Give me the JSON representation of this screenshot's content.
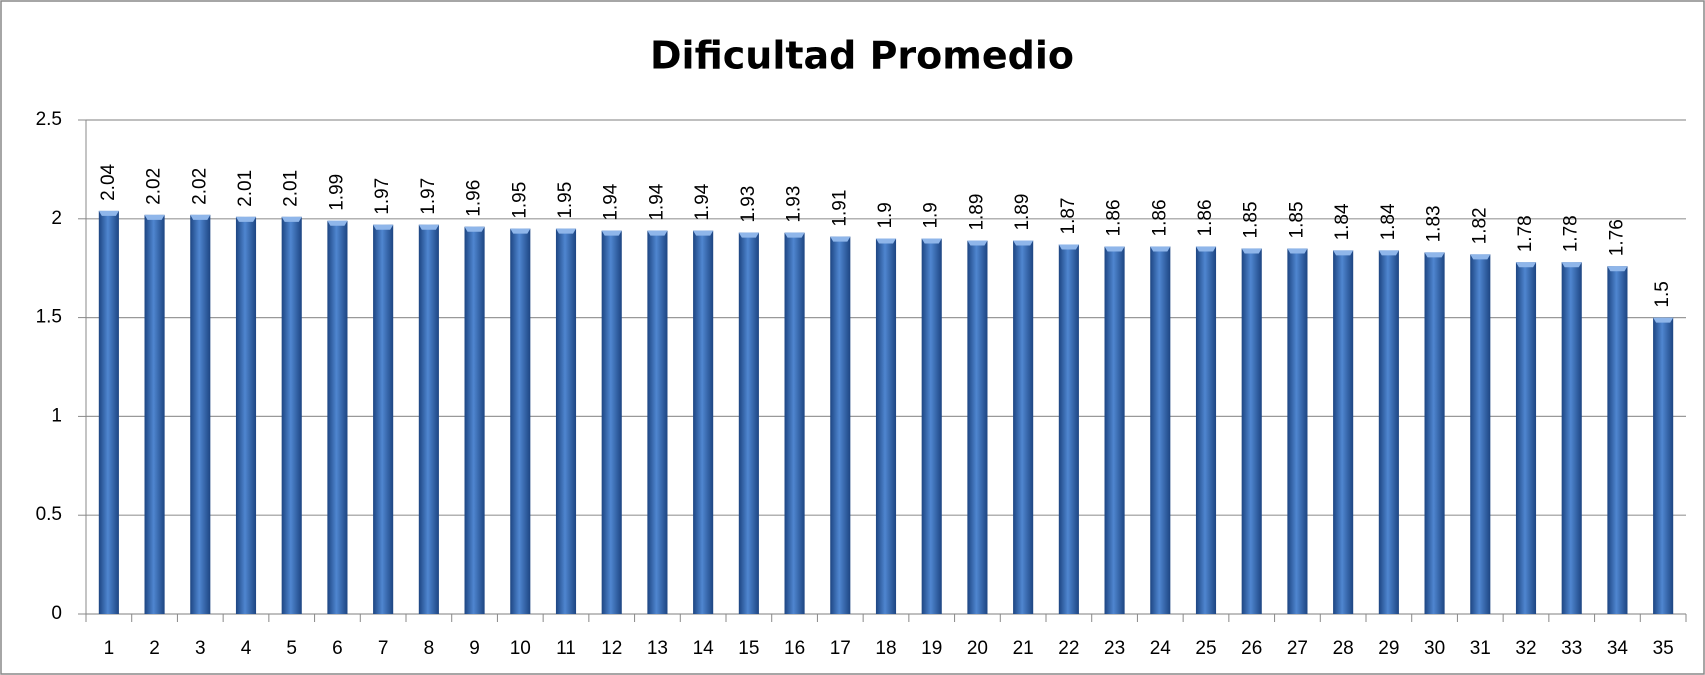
{
  "chart_data": {
    "type": "bar",
    "title": "Dificultad Promedio",
    "categories": [
      "1",
      "2",
      "3",
      "4",
      "5",
      "6",
      "7",
      "8",
      "9",
      "10",
      "11",
      "12",
      "13",
      "14",
      "15",
      "16",
      "17",
      "18",
      "19",
      "20",
      "21",
      "22",
      "23",
      "24",
      "25",
      "26",
      "27",
      "28",
      "29",
      "30",
      "31",
      "32",
      "33",
      "34",
      "35"
    ],
    "values": [
      2.04,
      2.02,
      2.02,
      2.01,
      2.01,
      1.99,
      1.97,
      1.97,
      1.96,
      1.95,
      1.95,
      1.94,
      1.94,
      1.94,
      1.93,
      1.93,
      1.91,
      1.9,
      1.9,
      1.89,
      1.89,
      1.87,
      1.86,
      1.86,
      1.86,
      1.85,
      1.85,
      1.84,
      1.84,
      1.83,
      1.82,
      1.78,
      1.78,
      1.76,
      1.5
    ],
    "color": "#3a6fb8",
    "ylim": [
      0,
      2.5
    ],
    "yticks": [
      0,
      0.5,
      1,
      1.5,
      2,
      2.5
    ],
    "grid": true
  }
}
